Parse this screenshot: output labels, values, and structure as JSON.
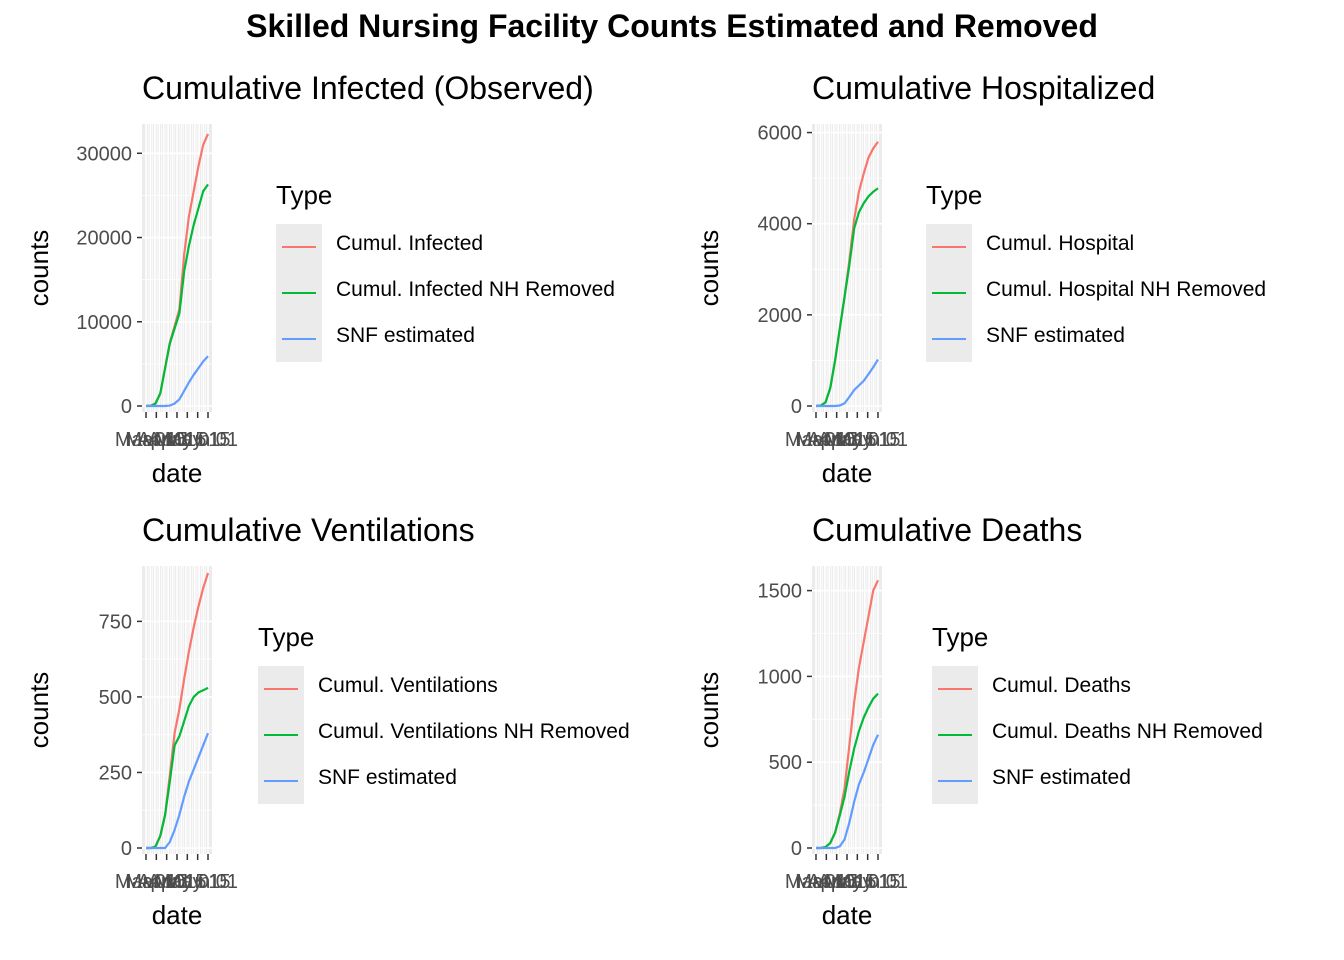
{
  "title": "Skilled Nursing Facility Counts Estimated and Removed",
  "chart_data": [
    {
      "type": "line",
      "title": "Cumulative Infected (Observed)",
      "xlabel": "date",
      "ylabel": "counts",
      "x": [
        "Mar 01",
        "Mar 08",
        "Mar 15",
        "Mar 22",
        "Mar 29",
        "Apr 05",
        "Apr 12",
        "Apr 19",
        "Apr 26",
        "May 03",
        "May 10",
        "May 17",
        "May 24",
        "Jun 01"
      ],
      "x_tick_labels": [
        "Mar 01",
        "Mar 15",
        "Apr 01",
        "Apr 15",
        "May 01",
        "May 15",
        "Jun 01"
      ],
      "yticks": [
        0,
        10000,
        20000,
        30000
      ],
      "ylim": [
        0,
        33000
      ],
      "legend_title": "Type",
      "legend_position": "right",
      "series": [
        {
          "name": "Cumul. Infected",
          "color": "#F8766D",
          "values": [
            0,
            30,
            300,
            1500,
            4500,
            7500,
            9500,
            11500,
            18000,
            22500,
            25500,
            28500,
            31000,
            32300
          ]
        },
        {
          "name": "Cumul. Infected NH Removed",
          "color": "#00BA38",
          "values": [
            0,
            30,
            300,
            1500,
            4500,
            7400,
            9200,
            11000,
            16000,
            19000,
            21500,
            23500,
            25500,
            26300
          ]
        },
        {
          "name": "SNF estimated",
          "color": "#619CFF",
          "values": [
            0,
            0,
            0,
            0,
            0,
            50,
            300,
            800,
            1800,
            2800,
            3700,
            4500,
            5300,
            5900
          ]
        }
      ]
    },
    {
      "type": "line",
      "title": "Cumulative Hospitalized",
      "xlabel": "date",
      "ylabel": "counts",
      "x": [
        "Mar 01",
        "Mar 08",
        "Mar 15",
        "Mar 22",
        "Mar 29",
        "Apr 05",
        "Apr 12",
        "Apr 19",
        "Apr 26",
        "May 03",
        "May 10",
        "May 17",
        "May 24",
        "Jun 01"
      ],
      "x_tick_labels": [
        "Mar 01",
        "Mar 15",
        "Apr 01",
        "Apr 15",
        "May 01",
        "May 15",
        "Jun 01"
      ],
      "yticks": [
        0,
        2000,
        4000,
        6000
      ],
      "ylim": [
        0,
        6100
      ],
      "legend_title": "Type",
      "legend_position": "right",
      "series": [
        {
          "name": "Cumul. Hospital",
          "color": "#F8766D",
          "values": [
            0,
            10,
            80,
            400,
            1000,
            1700,
            2400,
            3200,
            4100,
            4700,
            5100,
            5450,
            5650,
            5800
          ]
        },
        {
          "name": "Cumul. Hospital NH Removed",
          "color": "#00BA38",
          "values": [
            0,
            10,
            80,
            400,
            1000,
            1700,
            2400,
            3100,
            3900,
            4250,
            4450,
            4600,
            4700,
            4780
          ]
        },
        {
          "name": "SNF estimated",
          "color": "#619CFF",
          "values": [
            0,
            0,
            0,
            0,
            0,
            10,
            60,
            200,
            350,
            450,
            550,
            700,
            850,
            1020
          ]
        }
      ]
    },
    {
      "type": "line",
      "title": "Cumulative Ventilations",
      "xlabel": "date",
      "ylabel": "counts",
      "x": [
        "Mar 01",
        "Mar 08",
        "Mar 15",
        "Mar 22",
        "Mar 29",
        "Apr 05",
        "Apr 12",
        "Apr 19",
        "Apr 26",
        "May 03",
        "May 10",
        "May 17",
        "May 24",
        "Jun 01"
      ],
      "x_tick_labels": [
        "Mar 01",
        "Mar 15",
        "Apr 01",
        "Apr 15",
        "May 01",
        "May 15",
        "Jun 01"
      ],
      "yticks": [
        0,
        250,
        500,
        750
      ],
      "ylim": [
        0,
        920
      ],
      "legend_title": "Type",
      "legend_position": "right",
      "series": [
        {
          "name": "Cumul. Ventilations",
          "color": "#F8766D",
          "values": [
            0,
            0,
            5,
            40,
            110,
            240,
            380,
            460,
            560,
            650,
            730,
            800,
            860,
            910
          ]
        },
        {
          "name": "Cumul. Ventilations NH Removed",
          "color": "#00BA38",
          "values": [
            0,
            0,
            5,
            40,
            110,
            220,
            340,
            370,
            420,
            470,
            500,
            515,
            522,
            530
          ]
        },
        {
          "name": "SNF estimated",
          "color": "#619CFF",
          "values": [
            0,
            0,
            0,
            0,
            0,
            20,
            60,
            110,
            170,
            220,
            260,
            300,
            340,
            380
          ]
        }
      ]
    },
    {
      "type": "line",
      "title": "Cumulative Deaths",
      "xlabel": "date",
      "ylabel": "counts",
      "x": [
        "Mar 01",
        "Mar 08",
        "Mar 15",
        "Mar 22",
        "Mar 29",
        "Apr 05",
        "Apr 12",
        "Apr 19",
        "Apr 26",
        "May 03",
        "May 10",
        "May 17",
        "May 24",
        "Jun 01"
      ],
      "x_tick_labels": [
        "Mar 01",
        "Mar 15",
        "Apr 01",
        "Apr 15",
        "May 01",
        "May 15",
        "Jun 01"
      ],
      "yticks": [
        0,
        500,
        1000,
        1500
      ],
      "ylim": [
        0,
        1620
      ],
      "legend_title": "Type",
      "legend_position": "right",
      "series": [
        {
          "name": "Cumul. Deaths",
          "color": "#F8766D",
          "values": [
            0,
            0,
            5,
            30,
            90,
            200,
            350,
            600,
            850,
            1050,
            1200,
            1350,
            1500,
            1560
          ]
        },
        {
          "name": "Cumul. Deaths NH Removed",
          "color": "#00BA38",
          "values": [
            0,
            0,
            5,
            30,
            90,
            190,
            300,
            450,
            580,
            680,
            760,
            820,
            870,
            900
          ]
        },
        {
          "name": "SNF estimated",
          "color": "#619CFF",
          "values": [
            0,
            0,
            0,
            0,
            0,
            10,
            50,
            150,
            270,
            370,
            440,
            520,
            600,
            660
          ]
        }
      ]
    }
  ]
}
